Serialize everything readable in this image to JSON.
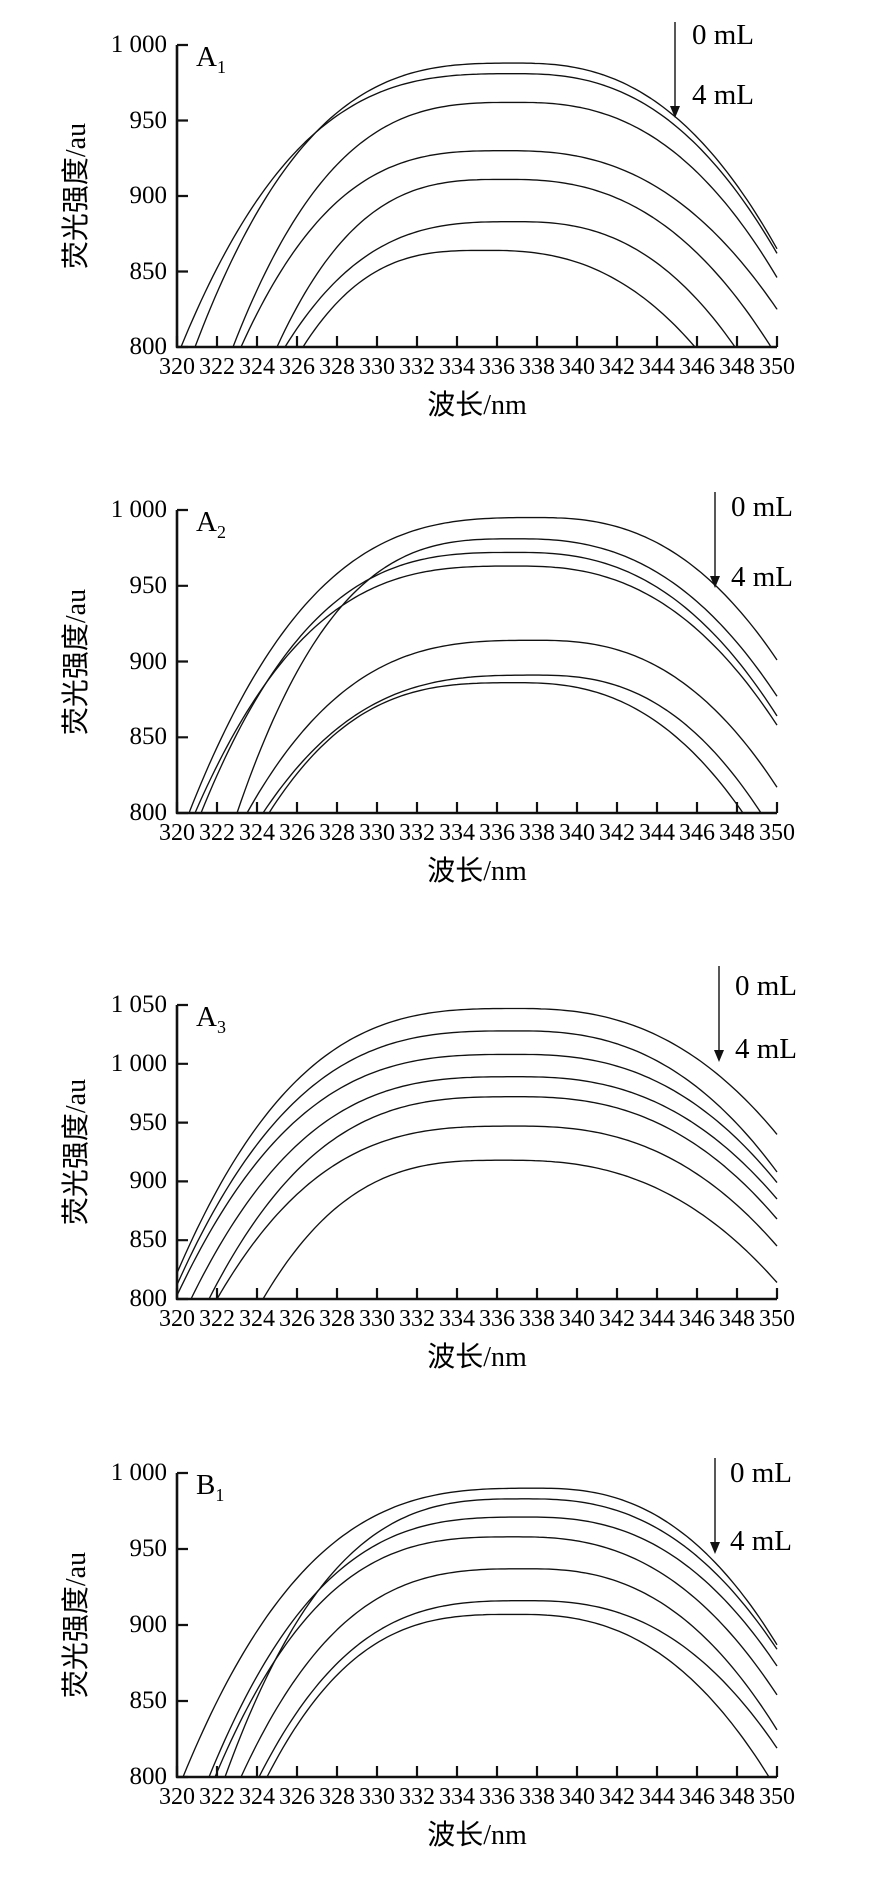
{
  "page": {
    "background": "#ffffff",
    "line_color": "#111111",
    "description_labels": {
      "x_axis_title": "波长/nm",
      "y_axis_title": "荧光强度/au",
      "annotation_top": "0 mL",
      "annotation_bottom": "4 mL"
    }
  },
  "chart_data": [
    {
      "type": "line",
      "panel_label": "A",
      "panel_sub": "1",
      "xlabel": "波长/nm",
      "ylabel": "荧光强度/au",
      "xlim": [
        320,
        350
      ],
      "ylim": [
        800,
        1000
      ],
      "x_tick_step": 2,
      "y_tick_step": 50,
      "x_ticks": [
        "320",
        "322",
        "324",
        "326",
        "328",
        "330",
        "332",
        "334",
        "336",
        "338",
        "340",
        "342",
        "344",
        "346",
        "348",
        "350"
      ],
      "y_tick_labels": [
        "800",
        "850",
        "900",
        "950",
        "1 000"
      ],
      "grid": false,
      "annotation": {
        "top": "0 mL",
        "bottom": "4 mL",
        "arrow": "down"
      },
      "series": [
        {
          "volume": "0 mL",
          "peak_nm": 337,
          "peak": 988,
          "left_nm": 320.9,
          "left_value": 800,
          "right_nm": 350,
          "right_value": 865
        },
        {
          "volume": "",
          "peak_nm": 337,
          "peak": 981,
          "left_nm": 320.2,
          "left_value": 800,
          "right_nm": 350,
          "right_value": 862
        },
        {
          "volume": "",
          "peak_nm": 337,
          "peak": 962,
          "left_nm": 322.8,
          "left_value": 800,
          "right_nm": 350,
          "right_value": 846
        },
        {
          "volume": "",
          "peak_nm": 336.5,
          "peak": 930,
          "left_nm": 323.2,
          "left_value": 800,
          "right_nm": 350,
          "right_value": 825
        },
        {
          "volume": "",
          "peak_nm": 336.5,
          "peak": 911,
          "left_nm": 325.0,
          "left_value": 800,
          "right_nm": 349.7,
          "right_value": 800
        },
        {
          "volume": "",
          "peak_nm": 337,
          "peak": 883,
          "left_nm": 325.4,
          "left_value": 800,
          "right_nm": 347.9,
          "right_value": 800
        },
        {
          "volume": "4 mL",
          "peak_nm": 335.5,
          "peak": 864,
          "left_nm": 326.3,
          "left_value": 800,
          "right_nm": 345.9,
          "right_value": 800
        }
      ]
    },
    {
      "type": "line",
      "panel_label": "A",
      "panel_sub": "2",
      "xlabel": "波长/nm",
      "ylabel": "荧光强度/au",
      "xlim": [
        320,
        350
      ],
      "ylim": [
        800,
        1000
      ],
      "x_tick_step": 2,
      "y_tick_step": 50,
      "x_ticks": [
        "320",
        "322",
        "324",
        "326",
        "328",
        "330",
        "332",
        "334",
        "336",
        "338",
        "340",
        "342",
        "344",
        "346",
        "348",
        "350"
      ],
      "y_tick_labels": [
        "800",
        "850",
        "900",
        "950",
        "1 000"
      ],
      "grid": false,
      "annotation": {
        "top": "0 mL",
        "bottom": "4 mL",
        "arrow": "down"
      },
      "series": [
        {
          "volume": "0 mL",
          "peak_nm": 338,
          "peak": 995,
          "left_nm": 320.6,
          "left_value": 800,
          "right_nm": 350,
          "right_value": 901
        },
        {
          "volume": "",
          "peak_nm": 337,
          "peak": 981,
          "left_nm": 323.0,
          "left_value": 800,
          "right_nm": 350,
          "right_value": 877
        },
        {
          "volume": "",
          "peak_nm": 337,
          "peak": 972,
          "left_nm": 321.2,
          "left_value": 800,
          "right_nm": 350,
          "right_value": 864
        },
        {
          "volume": "",
          "peak_nm": 337,
          "peak": 963,
          "left_nm": 320.9,
          "left_value": 800,
          "right_nm": 350,
          "right_value": 858
        },
        {
          "volume": "",
          "peak_nm": 338,
          "peak": 914,
          "left_nm": 323.5,
          "left_value": 800,
          "right_nm": 350,
          "right_value": 817
        },
        {
          "volume": "",
          "peak_nm": 338,
          "peak": 891,
          "left_nm": 324.3,
          "left_value": 800,
          "right_nm": 349.2,
          "right_value": 800
        },
        {
          "volume": "4 mL",
          "peak_nm": 337,
          "peak": 886,
          "left_nm": 324.6,
          "left_value": 800,
          "right_nm": 348.3,
          "right_value": 800
        }
      ]
    },
    {
      "type": "line",
      "panel_label": "A",
      "panel_sub": "3",
      "xlabel": "波长/nm",
      "ylabel": "荧光强度/au",
      "xlim": [
        320,
        350
      ],
      "ylim": [
        800,
        1050
      ],
      "x_tick_step": 2,
      "y_tick_step": 50,
      "x_ticks": [
        "320",
        "322",
        "324",
        "326",
        "328",
        "330",
        "332",
        "334",
        "336",
        "338",
        "340",
        "342",
        "344",
        "346",
        "348",
        "350"
      ],
      "y_tick_labels": [
        "800",
        "850",
        "900",
        "950",
        "1 000",
        "1 050"
      ],
      "grid": false,
      "annotation": {
        "top": "0 mL",
        "bottom": "4 mL",
        "arrow": "down"
      },
      "series": [
        {
          "volume": "0 mL",
          "peak_nm": 337,
          "peak": 1047,
          "left_nm": 320,
          "left_value": 822,
          "right_nm": 350,
          "right_value": 940
        },
        {
          "volume": "",
          "peak_nm": 337,
          "peak": 1028,
          "left_nm": 320,
          "left_value": 812,
          "right_nm": 350,
          "right_value": 908
        },
        {
          "volume": "",
          "peak_nm": 337,
          "peak": 1008,
          "left_nm": 320,
          "left_value": 803,
          "right_nm": 350,
          "right_value": 899
        },
        {
          "volume": "",
          "peak_nm": 337,
          "peak": 989,
          "left_nm": 320.7,
          "left_value": 800,
          "right_nm": 350,
          "right_value": 885
        },
        {
          "volume": "",
          "peak_nm": 337,
          "peak": 972,
          "left_nm": 321.6,
          "left_value": 800,
          "right_nm": 350,
          "right_value": 868
        },
        {
          "volume": "",
          "peak_nm": 337,
          "peak": 947,
          "left_nm": 322.0,
          "left_value": 800,
          "right_nm": 350,
          "right_value": 845
        },
        {
          "volume": "4 mL",
          "peak_nm": 336.5,
          "peak": 918,
          "left_nm": 324.3,
          "left_value": 800,
          "right_nm": 350,
          "right_value": 814
        }
      ]
    },
    {
      "type": "line",
      "panel_label": "B",
      "panel_sub": "1",
      "xlabel": "波长/nm",
      "ylabel": "荧光强度/au",
      "xlim": [
        320,
        350
      ],
      "ylim": [
        800,
        1000
      ],
      "x_tick_step": 2,
      "y_tick_step": 50,
      "x_ticks": [
        "320",
        "322",
        "324",
        "326",
        "328",
        "330",
        "332",
        "334",
        "336",
        "338",
        "340",
        "342",
        "344",
        "346",
        "348",
        "350"
      ],
      "y_tick_labels": [
        "800",
        "850",
        "900",
        "950",
        "1 000"
      ],
      "grid": false,
      "annotation": {
        "top": "0 mL",
        "bottom": "4 mL",
        "arrow": "down"
      },
      "series": [
        {
          "volume": "0 mL",
          "peak_nm": 338,
          "peak": 990,
          "left_nm": 320.3,
          "left_value": 800,
          "right_nm": 350,
          "right_value": 887
        },
        {
          "volume": "",
          "peak_nm": 337.5,
          "peak": 983,
          "left_nm": 322.4,
          "left_value": 800,
          "right_nm": 350,
          "right_value": 884
        },
        {
          "volume": "",
          "peak_nm": 337.5,
          "peak": 971,
          "left_nm": 321.6,
          "left_value": 800,
          "right_nm": 350,
          "right_value": 873
        },
        {
          "volume": "",
          "peak_nm": 337,
          "peak": 958,
          "left_nm": 321.9,
          "left_value": 800,
          "right_nm": 350,
          "right_value": 854
        },
        {
          "volume": "",
          "peak_nm": 337.5,
          "peak": 937,
          "left_nm": 323.2,
          "left_value": 800,
          "right_nm": 350,
          "right_value": 831
        },
        {
          "volume": "",
          "peak_nm": 337.5,
          "peak": 916,
          "left_nm": 324.1,
          "left_value": 800,
          "right_nm": 350,
          "right_value": 819
        },
        {
          "volume": "4 mL",
          "peak_nm": 337,
          "peak": 907,
          "left_nm": 324.5,
          "left_value": 800,
          "right_nm": 349.6,
          "right_value": 800
        }
      ]
    }
  ]
}
